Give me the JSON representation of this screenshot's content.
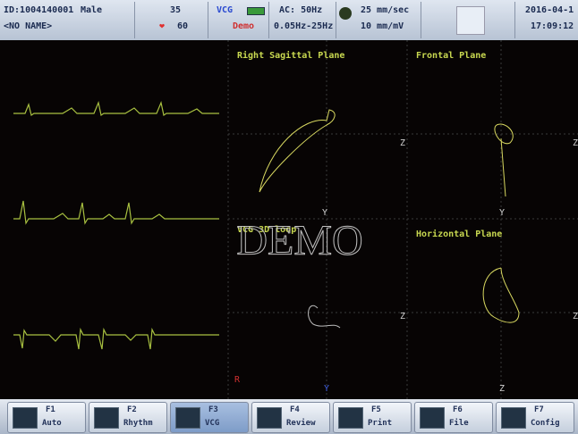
{
  "header": {
    "patient_id": "ID:1004140001",
    "patient_name": "<NO NAME>",
    "sex": "Male",
    "age": "35",
    "heart_rate": "60",
    "mode": "VCG",
    "status": "Demo",
    "ac_filter": "AC: 50Hz",
    "bandpass": "0.05Hz-25Hz",
    "speed": "25 mm/sec",
    "gain": "10 mm/mV",
    "date": "2016-04-1",
    "time": "17:09:12"
  },
  "panels": {
    "right_sagittal": "Right Sagittal Plane",
    "frontal": "Frontal Plane",
    "loop_3d": "VCG 3D loop",
    "horizontal": "Horizontal Plane"
  },
  "watermark": "DEMO",
  "axis_labels": [
    "Z",
    "Y",
    "Z",
    "Z",
    "Y",
    "Z",
    "Z",
    "R",
    "Y"
  ],
  "toolbar": [
    {
      "key": "F1",
      "label": "Auto"
    },
    {
      "key": "F2",
      "label": "Rhythm"
    },
    {
      "key": "F3",
      "label": "VCG"
    },
    {
      "key": "F4",
      "label": "Review"
    },
    {
      "key": "F5",
      "label": "Print"
    },
    {
      "key": "F6",
      "label": "File"
    },
    {
      "key": "F7",
      "label": "Config"
    }
  ]
}
